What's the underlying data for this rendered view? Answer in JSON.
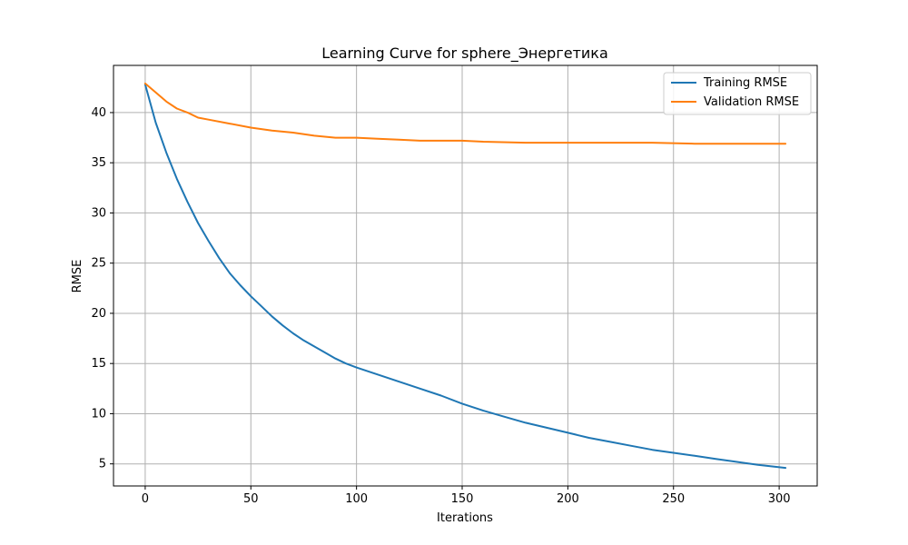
{
  "chart_data": {
    "type": "line",
    "title": "Learning Curve for sphere_Энергетика",
    "xlabel": "Iterations",
    "ylabel": "RMSE",
    "xlim": [
      -15,
      318
    ],
    "ylim": [
      2.8,
      44.7
    ],
    "xticks": [
      0,
      50,
      100,
      150,
      200,
      250,
      300
    ],
    "yticks": [
      5,
      10,
      15,
      20,
      25,
      30,
      35,
      40
    ],
    "grid": true,
    "legend_position": "top-right",
    "series": [
      {
        "name": "Training RMSE",
        "color": "#1f77b4",
        "x": [
          0,
          5,
          10,
          15,
          20,
          25,
          30,
          35,
          40,
          45,
          50,
          55,
          60,
          65,
          70,
          75,
          80,
          85,
          90,
          95,
          100,
          110,
          120,
          130,
          140,
          150,
          160,
          170,
          180,
          190,
          200,
          210,
          220,
          230,
          240,
          250,
          260,
          270,
          280,
          290,
          303
        ],
        "values": [
          42.8,
          39.0,
          36.0,
          33.4,
          31.1,
          29.0,
          27.2,
          25.5,
          24.0,
          22.8,
          21.7,
          20.7,
          19.7,
          18.8,
          18.0,
          17.3,
          16.7,
          16.1,
          15.5,
          15.0,
          14.6,
          13.9,
          13.2,
          12.5,
          11.8,
          11.0,
          10.3,
          9.7,
          9.1,
          8.6,
          8.1,
          7.6,
          7.2,
          6.8,
          6.4,
          6.1,
          5.8,
          5.5,
          5.2,
          4.9,
          4.6
        ]
      },
      {
        "name": "Validation RMSE",
        "color": "#ff7f0e",
        "x": [
          0,
          5,
          10,
          15,
          20,
          25,
          30,
          40,
          50,
          60,
          70,
          80,
          90,
          100,
          110,
          120,
          130,
          140,
          150,
          160,
          180,
          200,
          220,
          240,
          260,
          280,
          303
        ],
        "values": [
          42.9,
          42.0,
          41.1,
          40.4,
          40.0,
          39.5,
          39.3,
          38.9,
          38.5,
          38.2,
          38.0,
          37.7,
          37.5,
          37.5,
          37.4,
          37.3,
          37.2,
          37.2,
          37.2,
          37.1,
          37.0,
          37.0,
          37.0,
          37.0,
          36.9,
          36.9,
          36.9
        ]
      }
    ]
  }
}
